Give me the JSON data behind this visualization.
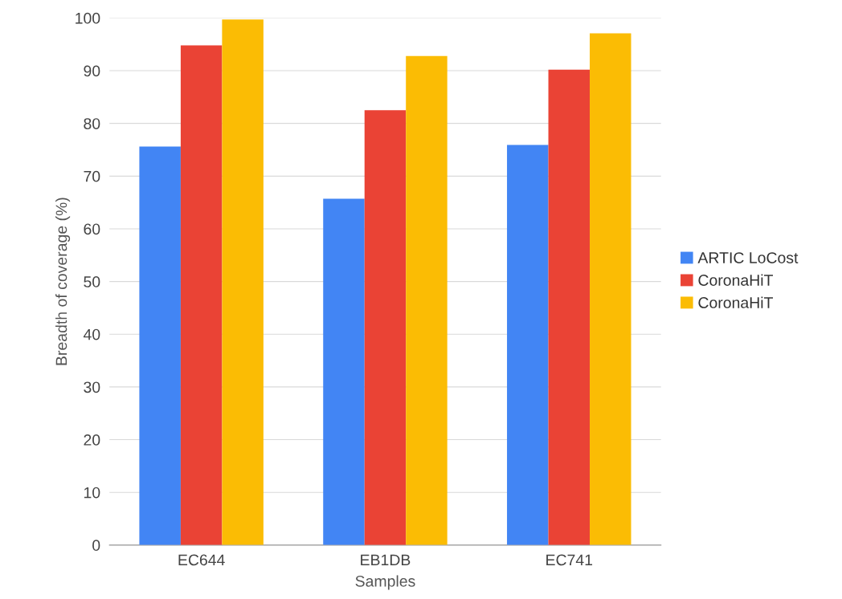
{
  "chart_data": {
    "type": "bar",
    "xlabel": "Samples",
    "ylabel": "Breadth of coverage (%)",
    "categories": [
      "EC644",
      "EB1DB",
      "EC741"
    ],
    "series": [
      {
        "name": "ARTIC LoCost",
        "color": "#4285f4",
        "values": [
          75.6,
          65.7,
          75.9
        ]
      },
      {
        "name": "CoronaHiT",
        "color": "#ea4335",
        "values": [
          94.8,
          82.5,
          90.2
        ]
      },
      {
        "name": "CoronaHiT",
        "color": "#fbbc04",
        "values": [
          99.7,
          92.8,
          97.1
        ]
      }
    ],
    "ylim": [
      0,
      100
    ],
    "yticks": [
      0,
      10,
      20,
      30,
      40,
      50,
      60,
      70,
      80,
      90,
      100
    ],
    "grid": "y",
    "legend": "right"
  }
}
